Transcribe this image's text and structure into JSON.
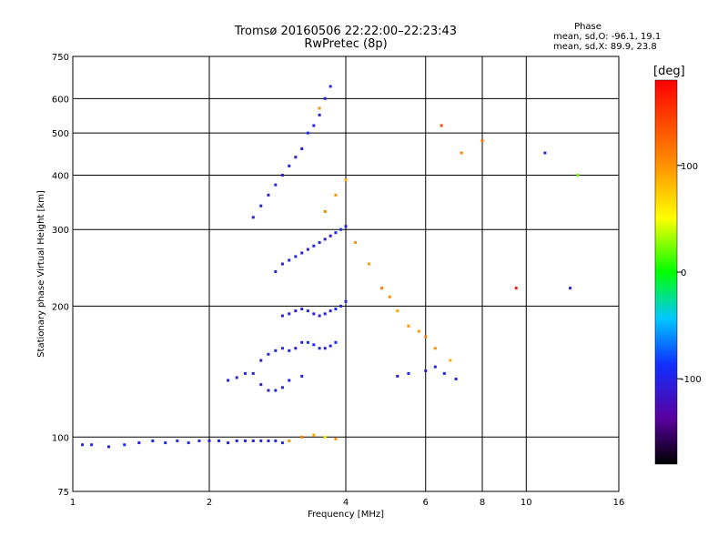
{
  "chart_data": {
    "type": "scatter",
    "title": "Tromsø 20160506 22:22:00–22:23:43",
    "subtitle": "RwPretec (8p)",
    "xlabel": "Frequency [MHz]",
    "ylabel": "Stationary phase Virtual Height [km]",
    "x_scale": "log",
    "y_scale": "log",
    "xlim": [
      1,
      16
    ],
    "ylim": [
      75,
      750
    ],
    "x_ticks": [
      1,
      2,
      4,
      6,
      8,
      10,
      16
    ],
    "x_tick_labels": [
      "1",
      "2",
      "4",
      "6",
      "8",
      "10",
      "16"
    ],
    "y_ticks": [
      75,
      100,
      200,
      300,
      400,
      500,
      600,
      750
    ],
    "y_tick_labels": [
      "75",
      "100",
      "200",
      "300",
      "400",
      "500",
      "600",
      "750"
    ],
    "grid": true,
    "phase_stats": {
      "title": "Phase",
      "o_line": "mean, sd,O: -96.1, 19.1",
      "x_line": "mean, sd,X:  89.9, 23.8"
    },
    "colorbar": {
      "label": "[deg]",
      "range": [
        -180,
        180
      ],
      "ticks": [
        100,
        0,
        -100
      ],
      "tick_labels": [
        "100",
        "0",
        "-100"
      ]
    },
    "series": [
      {
        "x": [
          1.05,
          1.1,
          1.2,
          1.3,
          1.4,
          1.5,
          1.6,
          1.7,
          1.8,
          1.9,
          2.0,
          2.1,
          2.2,
          2.3,
          2.4,
          2.5,
          2.6,
          2.7,
          2.8,
          2.9
        ],
        "y": [
          96,
          96,
          95,
          96,
          97,
          98,
          97,
          98,
          97,
          98,
          98,
          98,
          97,
          98,
          98,
          98,
          98,
          98,
          98,
          97
        ],
        "phase": [
          -100,
          -95,
          -100,
          -90,
          -100,
          -95,
          -95,
          -100,
          -100,
          -95,
          -100,
          -95,
          -100,
          -95,
          -100,
          -100,
          -95,
          -100,
          -100,
          -95
        ]
      },
      {
        "x": [
          2.2,
          2.3,
          2.4,
          2.5,
          2.6,
          2.7,
          2.8,
          2.9,
          3.0,
          3.2
        ],
        "y": [
          135,
          137,
          140,
          140,
          132,
          128,
          128,
          130,
          135,
          138
        ],
        "phase": [
          -100,
          -100,
          -95,
          -100,
          -110,
          -110,
          -100,
          -100,
          -95,
          -100
        ]
      },
      {
        "x": [
          2.6,
          2.7,
          2.8,
          2.9,
          3.0,
          3.1,
          3.2,
          3.3,
          3.4,
          3.5,
          3.6,
          3.7,
          3.8
        ],
        "y": [
          150,
          155,
          158,
          160,
          158,
          160,
          165,
          165,
          163,
          160,
          160,
          162,
          165
        ],
        "phase": [
          -110,
          -100,
          -100,
          -95,
          -100,
          -110,
          -100,
          -95,
          -90,
          -100,
          -110,
          -100,
          -95
        ]
      },
      {
        "x": [
          2.9,
          3.0,
          3.1,
          3.2,
          3.3,
          3.4,
          3.5,
          3.6,
          3.7,
          3.8,
          3.9,
          4.0
        ],
        "y": [
          190,
          192,
          195,
          197,
          195,
          192,
          190,
          192,
          195,
          197,
          200,
          205
        ],
        "phase": [
          -100,
          -100,
          -110,
          -100,
          -95,
          -100,
          -110,
          -100,
          -100,
          -95,
          -100,
          -100
        ]
      },
      {
        "x": [
          2.8,
          2.9,
          3.0,
          3.1,
          3.2,
          3.3,
          3.4,
          3.5,
          3.6,
          3.7,
          3.8,
          3.9,
          4.0
        ],
        "y": [
          240,
          250,
          255,
          260,
          265,
          270,
          275,
          280,
          285,
          290,
          295,
          300,
          305
        ],
        "phase": [
          -100,
          -110,
          -100,
          -95,
          -100,
          -110,
          -100,
          -95,
          -100,
          -110,
          -100,
          -95,
          -100
        ]
      },
      {
        "x": [
          2.5,
          2.6,
          2.7,
          2.8,
          2.9,
          3.0,
          3.1,
          3.2,
          3.3,
          3.4,
          3.5,
          3.6,
          3.7
        ],
        "y": [
          320,
          340,
          360,
          380,
          400,
          420,
          440,
          460,
          500,
          520,
          550,
          600,
          640
        ],
        "phase": [
          -100,
          -100,
          -110,
          -100,
          -95,
          -100,
          -110,
          -100,
          -95,
          -100,
          -110,
          -100,
          -95
        ]
      },
      {
        "x": [
          3.6,
          3.8,
          4.0,
          4.2,
          4.5,
          4.8,
          5.0,
          5.2,
          5.5,
          5.8,
          6.0,
          6.3,
          6.8
        ],
        "y": [
          330,
          360,
          390,
          280,
          250,
          220,
          210,
          195,
          180,
          175,
          170,
          160,
          150
        ],
        "phase": [
          110,
          100,
          90,
          100,
          95,
          110,
          100,
          90,
          100,
          95,
          110,
          100,
          90
        ]
      },
      {
        "x": [
          5.2,
          5.5,
          6.0,
          6.3,
          6.6,
          7.0
        ],
        "y": [
          138,
          140,
          142,
          145,
          140,
          136
        ],
        "phase": [
          -100,
          -100,
          -110,
          -100,
          -95,
          -100
        ]
      },
      {
        "x": [
          3.0,
          3.2,
          3.4,
          3.6,
          3.8
        ],
        "y": [
          98,
          100,
          101,
          100,
          99
        ],
        "phase": [
          100,
          110,
          90,
          60,
          100
        ]
      },
      {
        "x": [
          3.5,
          6.5,
          7.2,
          8.0,
          9.5,
          11.0,
          12.5,
          13.0
        ],
        "y": [
          570,
          520,
          450,
          480,
          220,
          450,
          220,
          400
        ],
        "phase": [
          100,
          140,
          110,
          120,
          170,
          -100,
          -100,
          20
        ]
      }
    ]
  }
}
